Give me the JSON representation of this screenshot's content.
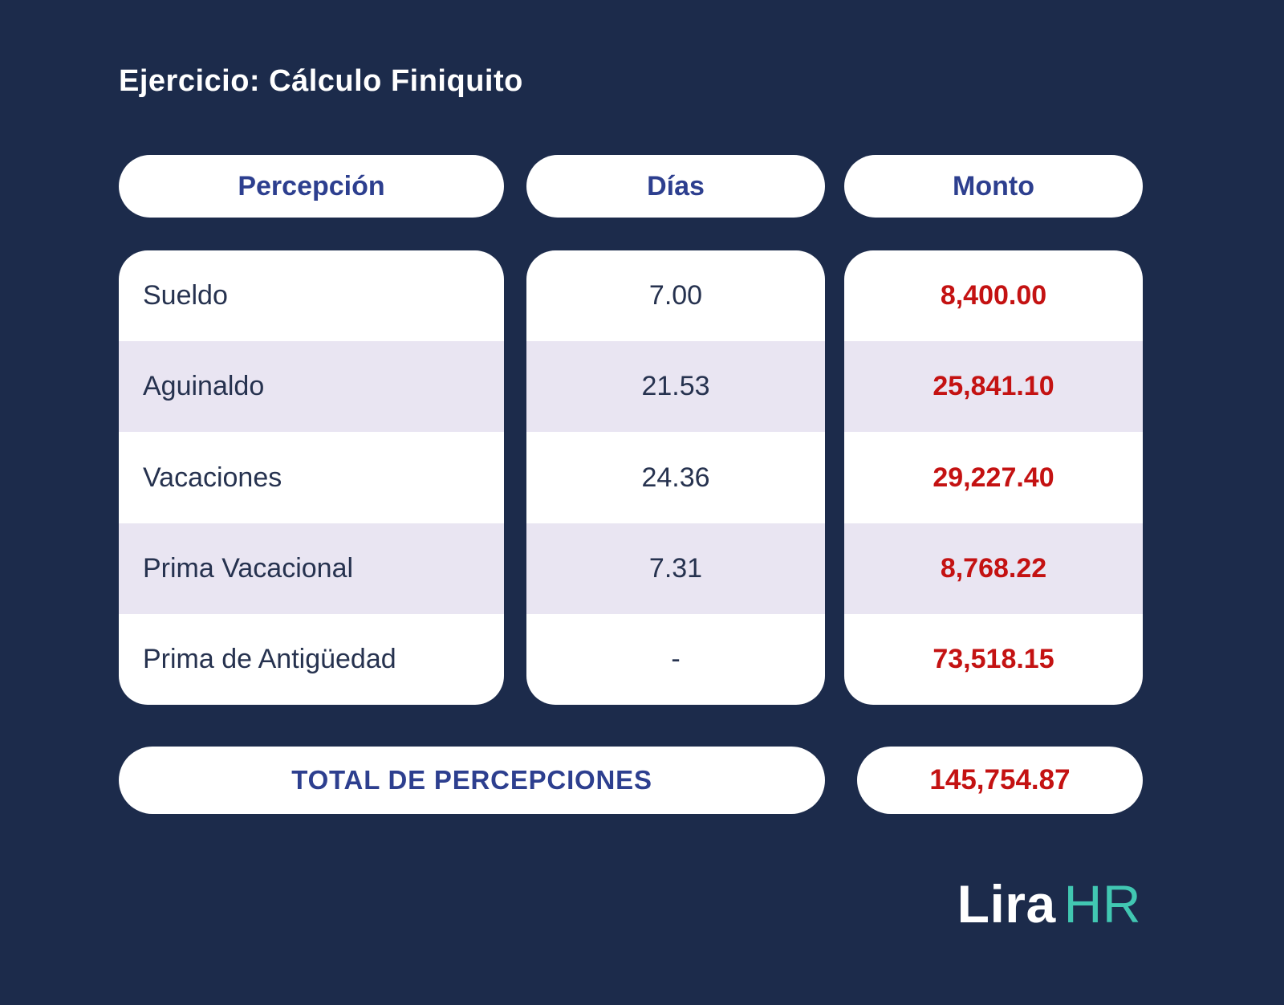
{
  "chart_data": {
    "type": "table",
    "title": "Ejercicio: Cálculo Finiquito",
    "columns": [
      "Percepción",
      "Días",
      "Monto"
    ],
    "rows": [
      [
        "Sueldo",
        "7.00",
        "8,400.00"
      ],
      [
        "Aguinaldo",
        "21.53",
        "25,841.10"
      ],
      [
        "Vacaciones",
        "24.36",
        "29,227.40"
      ],
      [
        "Prima Vacacional",
        "7.31",
        "8,768.22"
      ],
      [
        "Prima de Antigüedad",
        "-",
        "73,518.15"
      ]
    ],
    "total": {
      "label": "TOTAL DE PERCEPCIONES",
      "value": "145,754.87"
    },
    "layout_hints": {
      "striped_rows": "even rows highlighted",
      "amount_column_color": "red",
      "header_style": "white rounded pills"
    }
  },
  "logo": {
    "text": "Lira",
    "suffix": "HR"
  },
  "colors": {
    "background": "#1C2B4B",
    "header_text": "#2D3F8F",
    "row_text": "#26324F",
    "amount_red": "#C41212",
    "stripe": "#E9E5F2",
    "pill_white": "#FFFFFF",
    "logo_teal": "#41C7B2"
  }
}
